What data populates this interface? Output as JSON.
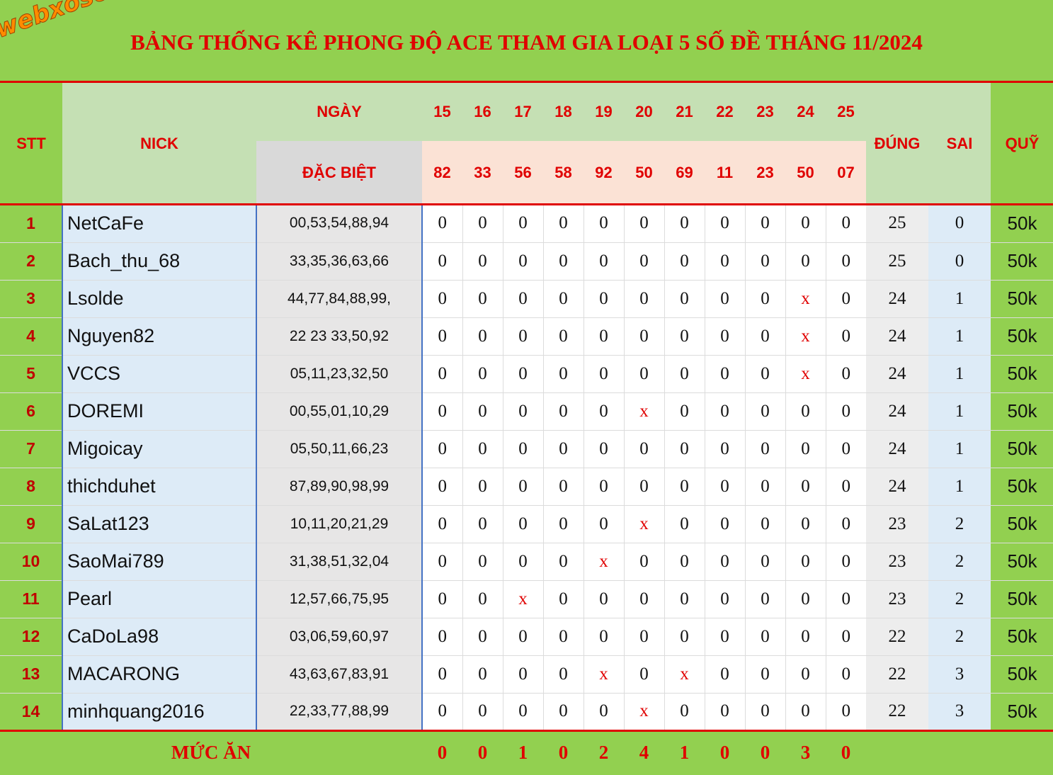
{
  "title": "BẢNG THỐNG KÊ PHONG ĐỘ ACE THAM GIA LOẠI 5 SỐ ĐỀ THÁNG 11/2024",
  "logo": "webxoso.net",
  "headers": {
    "stt": "STT",
    "nick": "NICK",
    "ngay": "NGÀY",
    "dac_biet": "ĐẶC BIỆT",
    "dung": "ĐÚNG",
    "sai": "SAI",
    "quy": "QUỸ"
  },
  "days": [
    "15",
    "16",
    "17",
    "18",
    "19",
    "20",
    "21",
    "22",
    "23",
    "24",
    "25"
  ],
  "specials": [
    "82",
    "33",
    "56",
    "58",
    "92",
    "50",
    "69",
    "11",
    "23",
    "50",
    "07"
  ],
  "rows": [
    {
      "stt": "1",
      "nick": "NetCaFe",
      "numbers": "00,53,54,88,94",
      "marks": [
        "0",
        "0",
        "0",
        "0",
        "0",
        "0",
        "0",
        "0",
        "0",
        "0",
        "0"
      ],
      "dung": "25",
      "sai": "0",
      "quy": "50k"
    },
    {
      "stt": "2",
      "nick": "Bach_thu_68",
      "numbers": "33,35,36,63,66",
      "marks": [
        "0",
        "0",
        "0",
        "0",
        "0",
        "0",
        "0",
        "0",
        "0",
        "0",
        "0"
      ],
      "dung": "25",
      "sai": "0",
      "quy": "50k"
    },
    {
      "stt": "3",
      "nick": "Lsolde",
      "numbers": "44,77,84,88,99,",
      "marks": [
        "0",
        "0",
        "0",
        "0",
        "0",
        "0",
        "0",
        "0",
        "0",
        "x",
        "0"
      ],
      "dung": "24",
      "sai": "1",
      "quy": "50k"
    },
    {
      "stt": "4",
      "nick": "Nguyen82",
      "numbers": "22 23 33,50,92",
      "marks": [
        "0",
        "0",
        "0",
        "0",
        "0",
        "0",
        "0",
        "0",
        "0",
        "x",
        "0"
      ],
      "dung": "24",
      "sai": "1",
      "quy": "50k"
    },
    {
      "stt": "5",
      "nick": "VCCS",
      "numbers": "05,11,23,32,50",
      "marks": [
        "0",
        "0",
        "0",
        "0",
        "0",
        "0",
        "0",
        "0",
        "0",
        "x",
        "0"
      ],
      "dung": "24",
      "sai": "1",
      "quy": "50k"
    },
    {
      "stt": "6",
      "nick": "DOREMI",
      "numbers": "00,55,01,10,29",
      "marks": [
        "0",
        "0",
        "0",
        "0",
        "0",
        "x",
        "0",
        "0",
        "0",
        "0",
        "0"
      ],
      "dung": "24",
      "sai": "1",
      "quy": "50k"
    },
    {
      "stt": "7",
      "nick": "Migoicay",
      "numbers": "05,50,11,66,23",
      "marks": [
        "0",
        "0",
        "0",
        "0",
        "0",
        "0",
        "0",
        "0",
        "0",
        "0",
        "0"
      ],
      "dung": "24",
      "sai": "1",
      "quy": "50k"
    },
    {
      "stt": "8",
      "nick": "thichduhet",
      "numbers": "87,89,90,98,99",
      "marks": [
        "0",
        "0",
        "0",
        "0",
        "0",
        "0",
        "0",
        "0",
        "0",
        "0",
        "0"
      ],
      "dung": "24",
      "sai": "1",
      "quy": "50k"
    },
    {
      "stt": "9",
      "nick": "SaLat123",
      "numbers": "10,11,20,21,29",
      "marks": [
        "0",
        "0",
        "0",
        "0",
        "0",
        "x",
        "0",
        "0",
        "0",
        "0",
        "0"
      ],
      "dung": "23",
      "sai": "2",
      "quy": "50k"
    },
    {
      "stt": "10",
      "nick": "SaoMai789",
      "numbers": "31,38,51,32,04",
      "marks": [
        "0",
        "0",
        "0",
        "0",
        "x",
        "0",
        "0",
        "0",
        "0",
        "0",
        "0"
      ],
      "dung": "23",
      "sai": "2",
      "quy": "50k"
    },
    {
      "stt": "11",
      "nick": "Pearl",
      "numbers": "12,57,66,75,95",
      "marks": [
        "0",
        "0",
        "x",
        "0",
        "0",
        "0",
        "0",
        "0",
        "0",
        "0",
        "0"
      ],
      "dung": "23",
      "sai": "2",
      "quy": "50k"
    },
    {
      "stt": "12",
      "nick": "CaDoLa98",
      "numbers": "03,06,59,60,97",
      "marks": [
        "0",
        "0",
        "0",
        "0",
        "0",
        "0",
        "0",
        "0",
        "0",
        "0",
        "0"
      ],
      "dung": "22",
      "sai": "2",
      "quy": "50k"
    },
    {
      "stt": "13",
      "nick": "MACARONG",
      "numbers": "43,63,67,83,91",
      "marks": [
        "0",
        "0",
        "0",
        "0",
        "x",
        "0",
        "x",
        "0",
        "0",
        "0",
        "0"
      ],
      "dung": "22",
      "sai": "3",
      "quy": "50k"
    },
    {
      "stt": "14",
      "nick": "minhquang2016",
      "numbers": "22,33,77,88,99",
      "marks": [
        "0",
        "0",
        "0",
        "0",
        "0",
        "x",
        "0",
        "0",
        "0",
        "0",
        "0"
      ],
      "dung": "22",
      "sai": "3",
      "quy": "50k"
    }
  ],
  "footer": {
    "label": "MỨC ĂN",
    "values": [
      "0",
      "0",
      "1",
      "0",
      "2",
      "4",
      "1",
      "0",
      "0",
      "3",
      "0"
    ]
  },
  "colors": {
    "green": "#92d050",
    "red": "#e00000",
    "light_green": "#c5e0b4",
    "pink": "#fbe2d5",
    "light_blue": "#ddebf7",
    "grey": "#e7e6e6"
  }
}
